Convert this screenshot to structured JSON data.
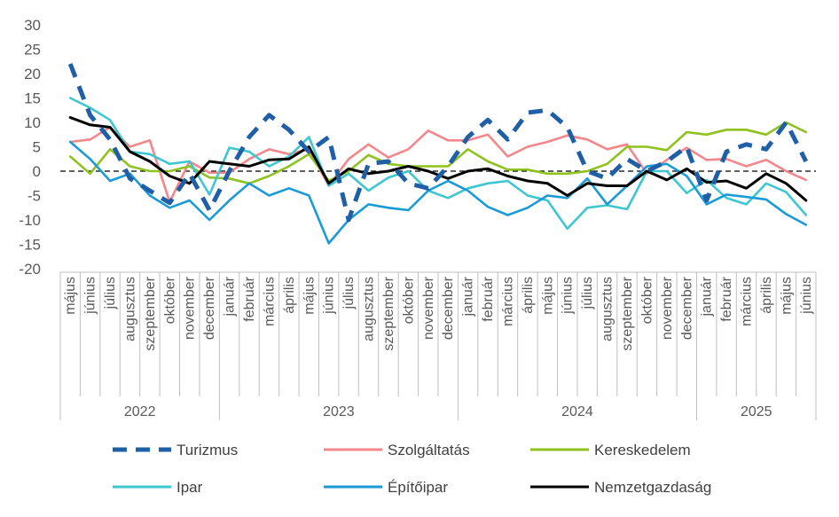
{
  "chart_data": {
    "type": "line",
    "title": "",
    "xlabel": "",
    "ylabel": "",
    "ylim": [
      -20,
      30
    ],
    "yticks": [
      "30",
      "25",
      "20",
      "15",
      "10",
      "5",
      "0",
      "-5",
      "-10",
      "-15",
      "-20"
    ],
    "ytick_values": [
      30,
      25,
      20,
      15,
      10,
      5,
      0,
      -5,
      -10,
      -15,
      -20
    ],
    "month_labels": [
      "május",
      "június",
      "július",
      "augusztus",
      "szeptember",
      "október",
      "november",
      "december",
      "január",
      "február",
      "március",
      "április",
      "május",
      "június",
      "július",
      "augusztus",
      "szeptember",
      "október",
      "november",
      "december",
      "január",
      "február",
      "március",
      "április",
      "május",
      "június",
      "július",
      "augusztus",
      "szeptember",
      "október",
      "november",
      "december",
      "január",
      "február",
      "március",
      "április",
      "május",
      "június"
    ],
    "years": [
      {
        "label": "2022",
        "start": 0,
        "count": 8
      },
      {
        "label": "2023",
        "start": 8,
        "count": 12
      },
      {
        "label": "2024",
        "start": 20,
        "count": 12
      },
      {
        "label": "2025",
        "start": 32,
        "count": 6
      }
    ],
    "series": [
      {
        "name": "Turizmus",
        "color": "#1F5FA6",
        "style": "dashed",
        "values": [
          22,
          11.5,
          6.5,
          -1.5,
          -4,
          -6.5,
          -0.5,
          -8,
          0,
          7,
          11.5,
          8.5,
          4,
          7,
          -10,
          1.5,
          2,
          -2.5,
          -3.5,
          1,
          7,
          10.5,
          6.5,
          12,
          12.5,
          9,
          0,
          -1.5,
          2.5,
          0,
          2,
          5,
          -6,
          4,
          5.5,
          4.5,
          10,
          2
        ]
      },
      {
        "name": "Szolgáltatás",
        "color": "#F4878B",
        "style": "solid",
        "values": [
          6,
          6.5,
          9,
          5,
          6.3,
          -6.3,
          2,
          -0.3,
          -0.3,
          2.5,
          4.5,
          3.5,
          4.5,
          -3,
          2.5,
          5.5,
          2.8,
          4.5,
          8.3,
          6.3,
          6.3,
          7.5,
          3,
          5,
          6,
          7.3,
          6.5,
          4.5,
          5.5,
          -0.5,
          2.3,
          4.8,
          2.3,
          2.5,
          1,
          2.3,
          0,
          -1.8
        ]
      },
      {
        "name": "Kereskedelem",
        "color": "#8DC21F",
        "style": "solid",
        "values": [
          3,
          -0.5,
          4.5,
          1,
          0,
          0,
          1,
          -1.3,
          -1.5,
          -2.5,
          -1,
          1,
          3.5,
          -2,
          0,
          3.3,
          1.5,
          1,
          1,
          1,
          4.5,
          2,
          0.3,
          0.3,
          -0.5,
          -0.5,
          0,
          1.5,
          5,
          5,
          4.3,
          8,
          7.5,
          8.5,
          8.5,
          7.5,
          10,
          8
        ]
      },
      {
        "name": "Ipar",
        "color": "#3EC7D0",
        "style": "solid",
        "values": [
          15,
          13,
          10.5,
          4,
          3.5,
          1.5,
          2,
          -4.8,
          4.8,
          4,
          1,
          3,
          7,
          -3,
          -0.5,
          -4,
          -1.3,
          0,
          -4,
          -5.5,
          -3.5,
          -2.5,
          -2,
          -5,
          -6,
          -11.8,
          -7.5,
          -7,
          -7.8,
          0,
          0,
          -4.5,
          -1.8,
          -5.5,
          -6.8,
          -2.5,
          -4.3,
          -9
        ]
      },
      {
        "name": "Építőipar",
        "color": "#1A9AD6",
        "style": "solid",
        "values": [
          6,
          2.5,
          -2,
          -0.5,
          -5,
          -7.5,
          -6,
          -10,
          -6,
          -2.5,
          -5,
          -3.5,
          -5,
          -14.8,
          -10,
          -6.8,
          -7.5,
          -8,
          -4,
          -2,
          -4,
          -7.3,
          -9,
          -7.5,
          -5,
          -5.5,
          -1.5,
          -6.8,
          -3,
          1,
          1.5,
          -1,
          -6.8,
          -4.8,
          -5.3,
          -5.8,
          -8.8,
          -11
        ]
      },
      {
        "name": "Nemzetgazdaság",
        "color": "#000000",
        "style": "solid",
        "values": [
          11,
          9.5,
          9,
          4,
          2,
          -1,
          -2.5,
          2,
          1.5,
          1,
          2.3,
          2.5,
          5,
          -2.5,
          0.5,
          -0.5,
          0,
          1,
          0,
          -1.5,
          0,
          0.5,
          -1,
          -2,
          -2.5,
          -5,
          -2.5,
          -3,
          -3,
          0,
          -1.8,
          0.5,
          -2.3,
          -2,
          -3.5,
          -0.5,
          -2.5,
          -6
        ]
      }
    ]
  }
}
